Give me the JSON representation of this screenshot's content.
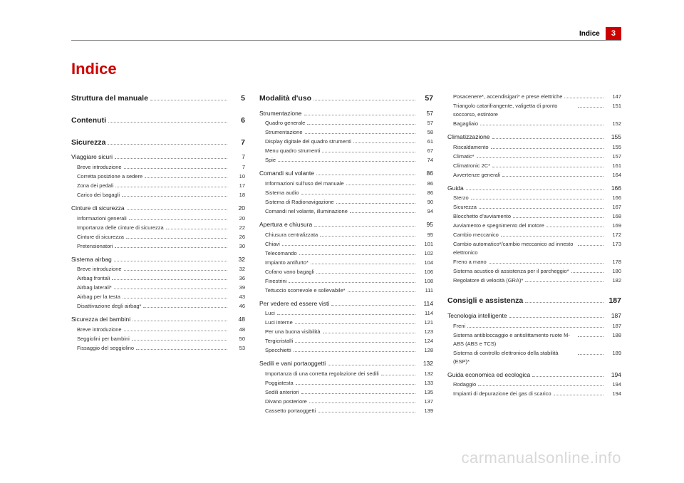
{
  "header": {
    "label": "Indice",
    "badge": "3"
  },
  "title": "Indice",
  "watermark": "carmanualsonline.info",
  "columns": [
    [
      {
        "lvl": 0,
        "label": "Struttura del manuale",
        "page": "5"
      },
      {
        "lvl": 0,
        "label": "Contenuti",
        "page": "6"
      },
      {
        "lvl": 0,
        "label": "Sicurezza",
        "page": "7"
      },
      {
        "lvl": 1,
        "label": "Viaggiare sicuri",
        "page": "7"
      },
      {
        "lvl": 2,
        "label": "Breve introduzione",
        "page": "7"
      },
      {
        "lvl": 2,
        "label": "Corretta posizione a sedere",
        "page": "10"
      },
      {
        "lvl": 2,
        "label": "Zona dei pedali",
        "page": "17"
      },
      {
        "lvl": 2,
        "label": "Carico dei bagagli",
        "page": "18"
      },
      {
        "lvl": 1,
        "label": "Cinture di sicurezza",
        "page": "20"
      },
      {
        "lvl": 2,
        "label": "Informazioni generali",
        "page": "20"
      },
      {
        "lvl": 2,
        "label": "Importanza delle cinture di sicurezza",
        "page": "22"
      },
      {
        "lvl": 2,
        "label": "Cinture di sicurezza",
        "page": "26"
      },
      {
        "lvl": 2,
        "label": "Pretensionatori",
        "page": "30"
      },
      {
        "lvl": 1,
        "label": "Sistema airbag",
        "page": "32"
      },
      {
        "lvl": 2,
        "label": "Breve introduzione",
        "page": "32"
      },
      {
        "lvl": 2,
        "label": "Airbag frontali",
        "page": "36"
      },
      {
        "lvl": 2,
        "label": "Airbag laterali*",
        "page": "39"
      },
      {
        "lvl": 2,
        "label": "Airbag per la testa",
        "page": "43"
      },
      {
        "lvl": 2,
        "label": "Disattivazione degli airbag*",
        "page": "46"
      },
      {
        "lvl": 1,
        "label": "Sicurezza dei bambini",
        "page": "48"
      },
      {
        "lvl": 2,
        "label": "Breve introduzione",
        "page": "48"
      },
      {
        "lvl": 2,
        "label": "Seggiolini per bambini",
        "page": "50"
      },
      {
        "lvl": 2,
        "label": "Fissaggio del seggiolino",
        "page": "53"
      }
    ],
    [
      {
        "lvl": 0,
        "label": "Modalità d'uso",
        "page": "57"
      },
      {
        "lvl": 1,
        "label": "Strumentazione",
        "page": "57"
      },
      {
        "lvl": 2,
        "label": "Quadro generale",
        "page": "57"
      },
      {
        "lvl": 2,
        "label": "Strumentazione",
        "page": "58"
      },
      {
        "lvl": 2,
        "label": "Display digitale del quadro strumenti",
        "page": "61"
      },
      {
        "lvl": 2,
        "label": "Menu quadro strumenti",
        "page": "67"
      },
      {
        "lvl": 2,
        "label": "Spie",
        "page": "74"
      },
      {
        "lvl": 1,
        "label": "Comandi sul volante",
        "page": "86"
      },
      {
        "lvl": 2,
        "label": "Informazioni sull'uso del manuale",
        "page": "86"
      },
      {
        "lvl": 2,
        "label": "Sistema audio",
        "page": "86"
      },
      {
        "lvl": 2,
        "label": "Sistema di Radionavigazione",
        "page": "90"
      },
      {
        "lvl": 2,
        "label": "Comandi nel volante, illuminazione",
        "page": "94"
      },
      {
        "lvl": 1,
        "label": "Apertura e chiusura",
        "page": "95"
      },
      {
        "lvl": 2,
        "label": "Chiusura centralizzata",
        "page": "95"
      },
      {
        "lvl": 2,
        "label": "Chiavi",
        "page": "101"
      },
      {
        "lvl": 2,
        "label": "Telecomando",
        "page": "102"
      },
      {
        "lvl": 2,
        "label": "Impianto antifurto*",
        "page": "104"
      },
      {
        "lvl": 2,
        "label": "Cofano vano bagagli",
        "page": "106"
      },
      {
        "lvl": 2,
        "label": "Finestrini",
        "page": "108"
      },
      {
        "lvl": 2,
        "label": "Tettuccio scorrevole e sollevabile*",
        "page": "111"
      },
      {
        "lvl": 1,
        "label": "Per vedere ed essere visti",
        "page": "114"
      },
      {
        "lvl": 2,
        "label": "Luci",
        "page": "114"
      },
      {
        "lvl": 2,
        "label": "Luci interne",
        "page": "121"
      },
      {
        "lvl": 2,
        "label": "Per una buona visibilità",
        "page": "123"
      },
      {
        "lvl": 2,
        "label": "Tergicristalli",
        "page": "124"
      },
      {
        "lvl": 2,
        "label": "Specchietti",
        "page": "128"
      },
      {
        "lvl": 1,
        "label": "Sedili e vani portaoggetti",
        "page": "132"
      },
      {
        "lvl": 2,
        "label": "Importanza di una corretta regolazione dei sedili",
        "page": "132"
      },
      {
        "lvl": 2,
        "label": "Poggiatesta",
        "page": "133"
      },
      {
        "lvl": 2,
        "label": "Sedili anteriori",
        "page": "135"
      },
      {
        "lvl": 2,
        "label": "Divano posteriore",
        "page": "137"
      },
      {
        "lvl": 2,
        "label": "Cassetto portaoggetti",
        "page": "139"
      }
    ],
    [
      {
        "lvl": 2,
        "label": "Posacenere*, accendisigari* e prese elettriche",
        "page": "147"
      },
      {
        "lvl": 2,
        "label": "Triangolo catarifrangente, valigetta di pronto soccorso, estintore",
        "page": "151",
        "wrap": true
      },
      {
        "lvl": 2,
        "label": "Bagagliaio",
        "page": "152"
      },
      {
        "lvl": 1,
        "label": "Climatizzazione",
        "page": "155"
      },
      {
        "lvl": 2,
        "label": "Riscaldamento",
        "page": "155"
      },
      {
        "lvl": 2,
        "label": "Climatic*",
        "page": "157"
      },
      {
        "lvl": 2,
        "label": "Climatronic 2C*",
        "page": "161"
      },
      {
        "lvl": 2,
        "label": "Avvertenze generali",
        "page": "164"
      },
      {
        "lvl": 1,
        "label": "Guida",
        "page": "166"
      },
      {
        "lvl": 2,
        "label": "Sterzo",
        "page": "166"
      },
      {
        "lvl": 2,
        "label": "Sicurezza",
        "page": "167"
      },
      {
        "lvl": 2,
        "label": "Blocchetto d'avviamento",
        "page": "168"
      },
      {
        "lvl": 2,
        "label": "Avviamento e spegnimento del motore",
        "page": "169"
      },
      {
        "lvl": 2,
        "label": "Cambio meccanico",
        "page": "172"
      },
      {
        "lvl": 2,
        "label": "Cambio automatico*/cambio meccanico ad innesto elettronico",
        "page": "173",
        "wrap": true
      },
      {
        "lvl": 2,
        "label": "Freno a mano",
        "page": "178"
      },
      {
        "lvl": 2,
        "label": "Sistema acustico di assistenza per il parcheggio*",
        "page": "180",
        "wrap": true
      },
      {
        "lvl": 2,
        "label": "Regolatore di velocità (GRA)*",
        "page": "182"
      },
      {
        "lvl": 0,
        "label": "Consigli e assistenza",
        "page": "187"
      },
      {
        "lvl": 1,
        "label": "Tecnologia intelligente",
        "page": "187"
      },
      {
        "lvl": 2,
        "label": "Freni",
        "page": "187"
      },
      {
        "lvl": 2,
        "label": "Sistema antibloccaggio e antislittamento ruote M-ABS (ABS e TCS)",
        "page": "188",
        "wrap": true
      },
      {
        "lvl": 2,
        "label": "Sistema di controllo elettronico della stabilità (ESP)*",
        "page": "189",
        "wrap": true
      },
      {
        "lvl": 1,
        "label": "Guida economica ed ecologica",
        "page": "194"
      },
      {
        "lvl": 2,
        "label": "Rodaggio",
        "page": "194"
      },
      {
        "lvl": 2,
        "label": "Impianti di depurazione dei gas di scarico",
        "page": "194"
      }
    ]
  ]
}
